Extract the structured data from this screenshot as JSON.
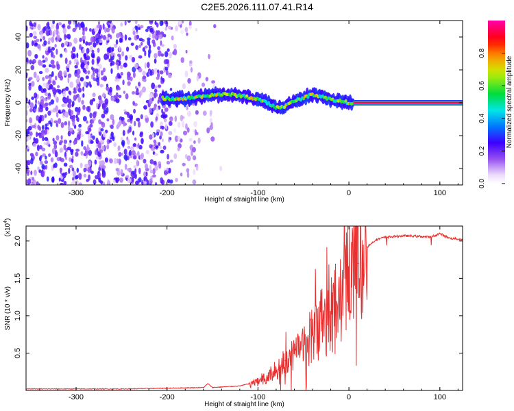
{
  "title": "C2E5.2026.111.07.41.R14",
  "chart_data": [
    {
      "type": "heatmap",
      "title": "C2E5.2026.111.07.41.R14",
      "xlabel": "Height of straight line (km)",
      "ylabel": "Frequency (Hz)",
      "xlim": [
        -355,
        125
      ],
      "ylim": [
        -50,
        50
      ],
      "xticks": [
        -300,
        -200,
        -100,
        0,
        100
      ],
      "xtick_labels": [
        "-300",
        "-200",
        "-100",
        "0",
        "100"
      ],
      "yticks": [
        -40,
        -20,
        0,
        20,
        40
      ],
      "ytick_labels": [
        "-40",
        "-20",
        "0",
        "20",
        "40"
      ],
      "colorbar": {
        "label": "Normalized spectral amplitude",
        "range": [
          0,
          1
        ],
        "ticks": [
          0,
          0.2,
          0.4,
          0.6,
          0.8
        ],
        "tick_labels": [
          "0.0",
          "0.2",
          "0.4",
          "0.6",
          "0.8"
        ]
      },
      "signal_track": {
        "x": [
          -205,
          -190,
          -175,
          -160,
          -145,
          -130,
          -115,
          -100,
          -90,
          -80,
          -70,
          -60,
          -50,
          -40,
          -30,
          -20,
          -10,
          0,
          10,
          125
        ],
        "freq": [
          3,
          2,
          3,
          4,
          5,
          5,
          4,
          2,
          0,
          -3,
          -2,
          1,
          3,
          5,
          4,
          2,
          1,
          0,
          0,
          0
        ]
      },
      "noise_region_x": [
        -355,
        -140
      ],
      "constant_line": {
        "x_start": 5,
        "x_end": 125,
        "freq": 0
      }
    },
    {
      "type": "line",
      "title": "",
      "xlabel": "Height of straight line (km)",
      "ylabel": "SNR (10 * v/v)",
      "yscale_label": "(x10",
      "yscale_exp": "4",
      "yscale_close": ")",
      "xlim": [
        -355,
        125
      ],
      "ylim": [
        0,
        2.2
      ],
      "xticks": [
        -300,
        -200,
        -100,
        0,
        100
      ],
      "xtick_labels": [
        "-300",
        "-200",
        "-100",
        "0",
        "100"
      ],
      "yticks": [
        0.5,
        1.0,
        1.5,
        2.0
      ],
      "ytick_labels": [
        "0.5",
        "1.0",
        "1.5",
        "2.0"
      ],
      "series": [
        {
          "name": "SNR",
          "color": "#e83030",
          "x": [
            -355,
            -300,
            -250,
            -200,
            -160,
            -155,
            -150,
            -120,
            -100,
            -90,
            -80,
            -70,
            -60,
            -50,
            -40,
            -30,
            -20,
            -10,
            0,
            10,
            20,
            30,
            40,
            60,
            80,
            90,
            100,
            110,
            125
          ],
          "y": [
            0.02,
            0.02,
            0.02,
            0.03,
            0.04,
            0.09,
            0.04,
            0.06,
            0.12,
            0.2,
            0.3,
            0.4,
            0.5,
            0.6,
            0.75,
            0.9,
            1.0,
            1.2,
            1.45,
            1.7,
            1.92,
            2.02,
            2.05,
            2.07,
            2.06,
            2.05,
            2.1,
            2.04,
            2.02
          ]
        }
      ]
    }
  ]
}
